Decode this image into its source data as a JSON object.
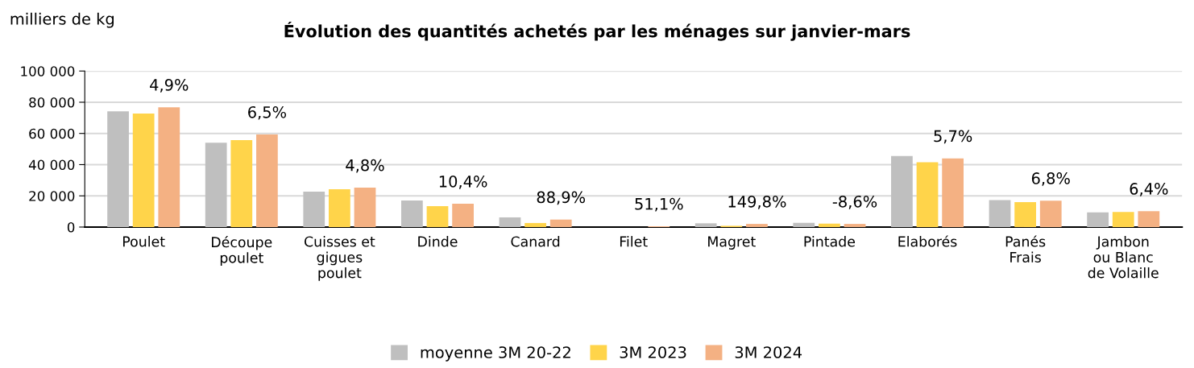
{
  "chart_data": {
    "type": "bar",
    "title": "Évolution des quantités achetés par les ménages sur janvier-mars",
    "ylabel": "milliers de kg",
    "categories": [
      "Poulet",
      "Découpe\npoulet",
      "Cuisses et\ngigues\npoulet",
      "Dinde",
      "Canard",
      "Filet",
      "Magret",
      "Pintade",
      "Elaborés",
      "Panés\nFrais",
      "Jambon\nou Blanc\nde Volaille"
    ],
    "series": [
      {
        "name": "moyenne 3M 20-22",
        "color": "#bfbfbf",
        "values": [
          74200,
          54000,
          22700,
          17000,
          6200,
          null,
          2400,
          2700,
          45500,
          17300,
          9400
        ]
      },
      {
        "name": "3M 2023",
        "color": "#ffd44a",
        "values": [
          72700,
          55700,
          24200,
          13400,
          2600,
          null,
          800,
          2200,
          41500,
          16000,
          9600
        ]
      },
      {
        "name": "3M 2024",
        "color": "#f4b183",
        "values": [
          76800,
          59300,
          25300,
          14900,
          4800,
          500,
          2000,
          2000,
          44000,
          16900,
          10200
        ]
      }
    ],
    "annotations": [
      "4,9%",
      "6,5%",
      "4,8%",
      "10,4%",
      "88,9%",
      "51,1%",
      "149,8%",
      "-8,6%",
      "5,7%",
      "6,8%",
      "6,4%"
    ],
    "ylim": [
      0,
      100000
    ],
    "yticks": [
      0,
      {
        "value": 20000,
        "label": "20 000"
      },
      {
        "value": 40000,
        "label": "40 000"
      },
      {
        "value": 60000,
        "label": "60 000"
      },
      {
        "value": 80000,
        "label": "80 000"
      },
      {
        "value": 100000,
        "label": "100 000"
      }
    ],
    "grid": "y",
    "legend": "bottom"
  }
}
